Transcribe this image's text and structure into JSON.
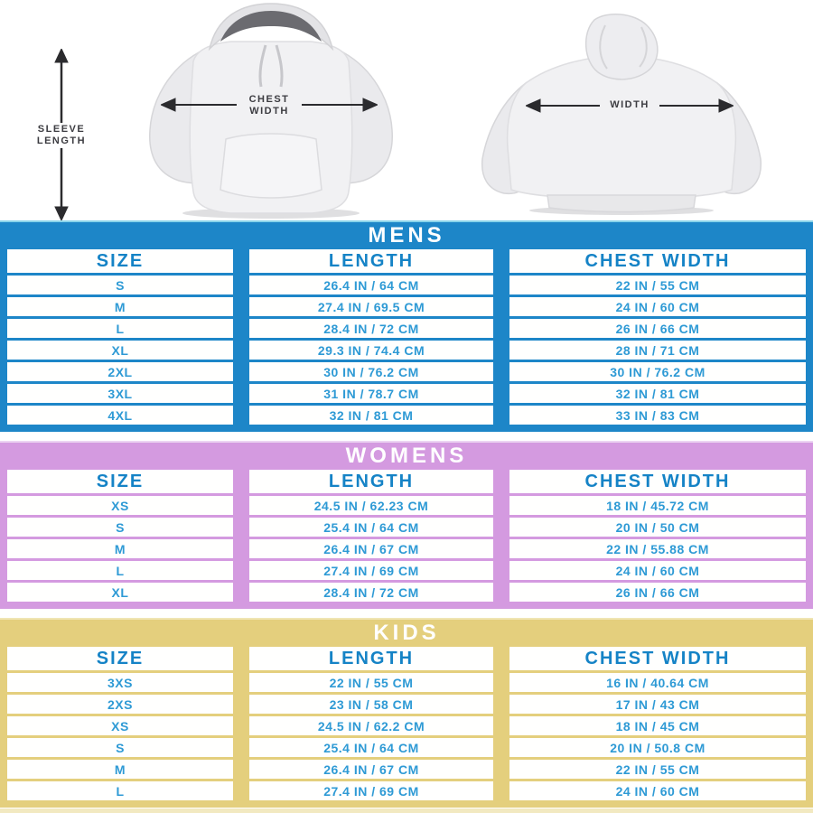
{
  "diagram": {
    "sleeve_length_label": "SLEEVE LENGTH",
    "chest_width_label": "CHEST WIDTH",
    "back_width_label": "WIDTH"
  },
  "accents": {
    "arrow_color": "#2b2b2e",
    "bottom_strip_color": "#f2e9c1"
  },
  "tables": [
    {
      "title": "MENS",
      "theme_color": "#1d86c8",
      "top_line_color": "#8ad4ea",
      "header_text_color": "#1583c6",
      "value_text_color": "#2e9ad5",
      "columns": [
        "SIZE",
        "LENGTH",
        "CHEST WIDTH"
      ],
      "rows": [
        [
          "S",
          "26.4 IN / 64 CM",
          "22 IN / 55 CM"
        ],
        [
          "M",
          "27.4 IN / 69.5 CM",
          "24 IN / 60 CM"
        ],
        [
          "L",
          "28.4 IN / 72 CM",
          "26 IN / 66 CM"
        ],
        [
          "XL",
          "29.3 IN / 74.4 CM",
          "28 IN / 71 CM"
        ],
        [
          "2XL",
          "30 IN / 76.2 CM",
          "30 IN / 76.2 CM"
        ],
        [
          "3XL",
          "31 IN / 78.7 CM",
          "32 IN / 81 CM"
        ],
        [
          "4XL",
          "32 IN / 81 CM",
          "33 IN / 83 CM"
        ]
      ]
    },
    {
      "title": "WOMENS",
      "theme_color": "#d49ae0",
      "top_line_color": "#ecd4f2",
      "header_text_color": "#1583c6",
      "value_text_color": "#2e9ad5",
      "columns": [
        "SIZE",
        "LENGTH",
        "CHEST WIDTH"
      ],
      "rows": [
        [
          "XS",
          "24.5 IN / 62.23 CM",
          "18 IN / 45.72 CM"
        ],
        [
          "S",
          "25.4 IN / 64 CM",
          "20 IN / 50 CM"
        ],
        [
          "M",
          "26.4 IN / 67 CM",
          "22 IN / 55.88 CM"
        ],
        [
          "L",
          "27.4 IN / 69 CM",
          "24 IN / 60 CM"
        ],
        [
          "XL",
          "28.4 IN / 72 CM",
          "26 IN / 66 CM"
        ]
      ]
    },
    {
      "title": "KIDS",
      "theme_color": "#e4cf7d",
      "top_line_color": "#f0e5b4",
      "header_text_color": "#1583c6",
      "value_text_color": "#2e9ad5",
      "columns": [
        "SIZE",
        "LENGTH",
        "CHEST WIDTH"
      ],
      "rows": [
        [
          "3XS",
          "22 IN / 55 CM",
          "16 IN / 40.64 CM"
        ],
        [
          "2XS",
          "23 IN / 58 CM",
          "17 IN / 43 CM"
        ],
        [
          "XS",
          "24.5 IN / 62.2 CM",
          "18 IN / 45 CM"
        ],
        [
          "S",
          "25.4 IN / 64 CM",
          "20 IN / 50.8 CM"
        ],
        [
          "M",
          "26.4 IN / 67 CM",
          "22 IN / 55 CM"
        ],
        [
          "L",
          "27.4 IN / 69 CM",
          "24 IN / 60 CM"
        ]
      ]
    }
  ]
}
